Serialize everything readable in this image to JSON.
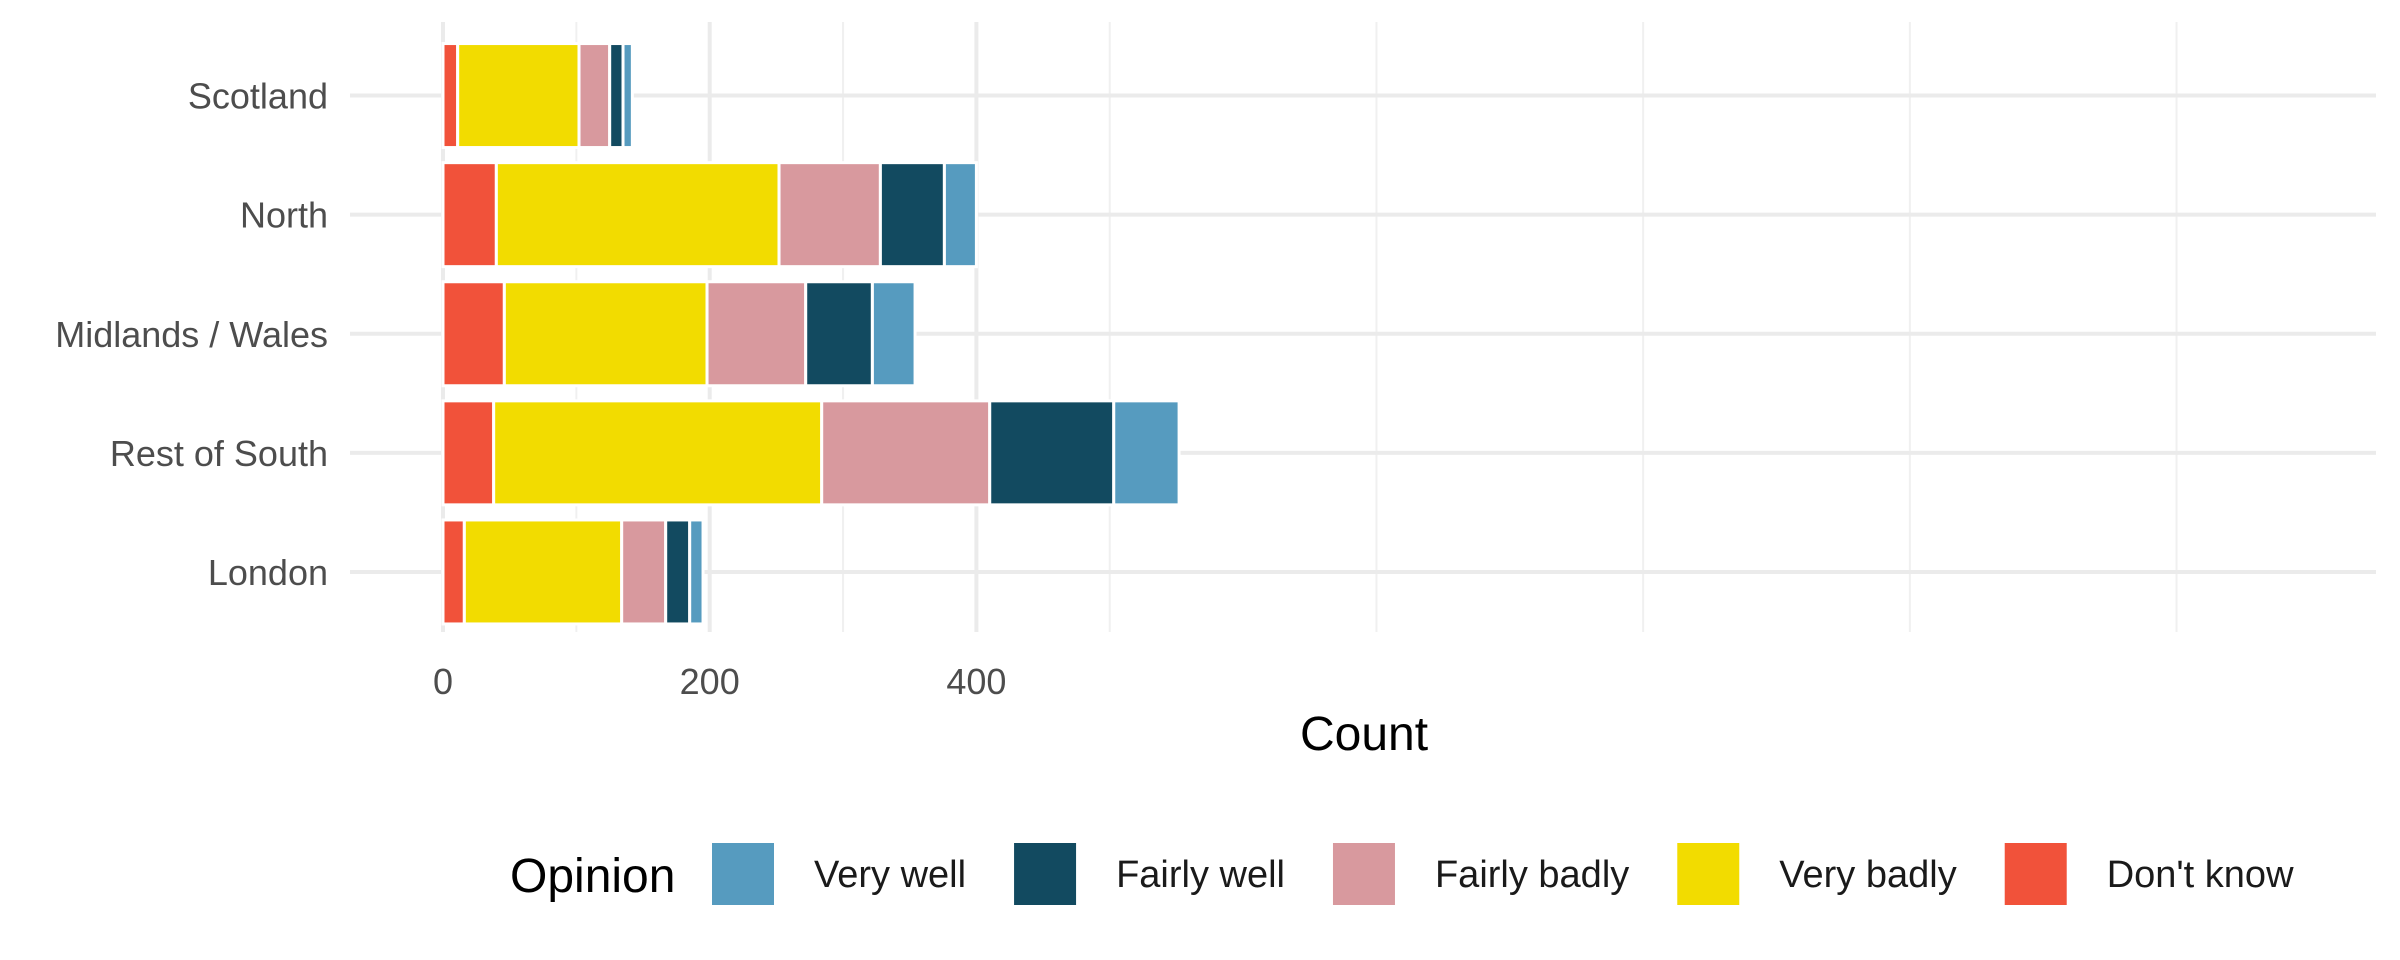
{
  "chart_data": {
    "type": "bar",
    "orientation": "horizontal",
    "stacked": true,
    "categories": [
      "Scotland",
      "North",
      "Midlands / Wales",
      "Rest of South",
      "London"
    ],
    "series": [
      {
        "name": "Don't know",
        "color": "#f1523a",
        "values": [
          11,
          40,
          46,
          38,
          16
        ]
      },
      {
        "name": "Very badly",
        "color": "#f2dc00",
        "values": [
          91,
          212,
          152,
          246,
          118
        ]
      },
      {
        "name": "Fairly badly",
        "color": "#d8999e",
        "values": [
          23,
          76,
          74,
          126,
          33
        ]
      },
      {
        "name": "Fairly well",
        "color": "#124a60",
        "values": [
          10,
          48,
          50,
          93,
          18
        ]
      },
      {
        "name": "Very well",
        "color": "#569bbf",
        "values": [
          7,
          24,
          32,
          49,
          10
        ]
      }
    ],
    "xlabel": "Count",
    "ylabel": "",
    "x_ticks": [
      0,
      200,
      400
    ],
    "xlim": [
      -28,
      580
    ],
    "grid": true,
    "legend": {
      "title": "Opinion",
      "position": "bottom",
      "order": [
        "Very well",
        "Fairly well",
        "Fairly badly",
        "Very badly",
        "Don't know"
      ]
    }
  }
}
